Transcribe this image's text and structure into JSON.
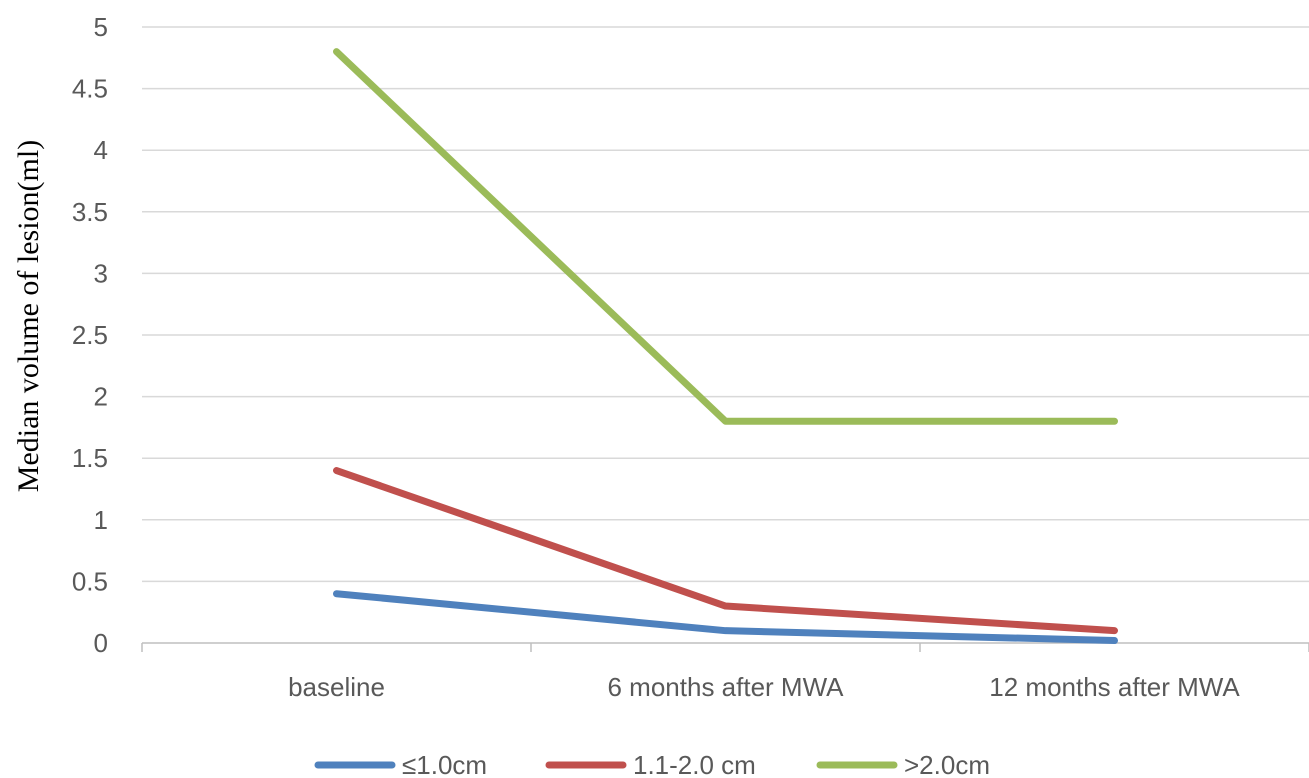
{
  "chart_data": {
    "type": "line",
    "title": "",
    "xlabel": "",
    "ylabel": "Median volume of lesion(ml)",
    "categories": [
      "baseline",
      "6 months after MWA",
      "12 months after MWA"
    ],
    "ylim": [
      0,
      5
    ],
    "yticks": [
      0,
      0.5,
      1,
      1.5,
      2,
      2.5,
      3,
      3.5,
      4,
      4.5,
      5
    ],
    "ytick_labels": [
      "0",
      "0.5",
      "1",
      "1.5",
      "2",
      "2.5",
      "3",
      "3.5",
      "4",
      "4.5",
      "5"
    ],
    "grid": true,
    "legend_position": "bottom",
    "series": [
      {
        "name": "≤1.0cm",
        "color": "#4f81bd",
        "values": [
          0.4,
          0.1,
          0.02
        ]
      },
      {
        "name": "1.1-2.0 cm",
        "color": "#c0504d",
        "values": [
          1.4,
          0.3,
          0.1
        ]
      },
      {
        "name": ">2.0cm",
        "color": "#9bbb59",
        "values": [
          4.8,
          1.8,
          1.8
        ]
      }
    ]
  }
}
